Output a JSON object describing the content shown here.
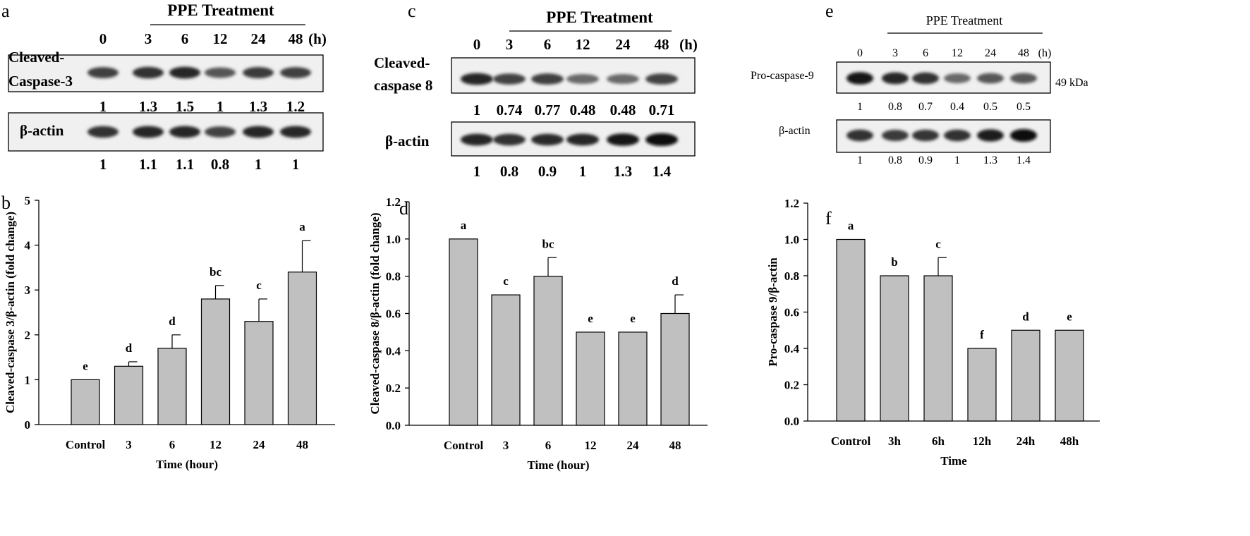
{
  "panel_letters": [
    "a",
    "b",
    "c",
    "d",
    "e",
    "f"
  ],
  "blots": [
    {
      "header": "PPE Treatment",
      "lanes": [
        "0",
        "3",
        "6",
        "12",
        "24",
        "48"
      ],
      "unit": "(h)",
      "rows": [
        {
          "label": [
            "Cleaved-",
            "Caspase-3"
          ],
          "values": [
            "1",
            "1.3",
            "1.5",
            "1",
            "1.3",
            "1.2"
          ],
          "band_intensity": [
            0.72,
            0.8,
            0.85,
            0.6,
            0.75,
            0.72
          ]
        },
        {
          "label": [
            "β-actin"
          ],
          "values": [
            "1",
            "1.1",
            "1.1",
            "0.8",
            "1",
            "1"
          ],
          "band_intensity": [
            0.8,
            0.85,
            0.85,
            0.7,
            0.85,
            0.85
          ]
        }
      ]
    },
    {
      "header": "PPE Treatment",
      "lanes": [
        "0",
        "3",
        "6",
        "12",
        "24",
        "48"
      ],
      "unit": "(h)",
      "rows": [
        {
          "label": [
            "Cleaved-",
            "caspase 8"
          ],
          "values": [
            "1",
            "0.74",
            "0.77",
            "0.48",
            "0.48",
            "0.71"
          ],
          "band_intensity": [
            0.85,
            0.7,
            0.72,
            0.5,
            0.5,
            0.7
          ]
        },
        {
          "label": [
            "β-actin"
          ],
          "values": [
            "1",
            "0.8",
            "0.9",
            "1",
            "1.3",
            "1.4"
          ],
          "band_intensity": [
            0.85,
            0.8,
            0.82,
            0.85,
            0.95,
            1.0
          ]
        }
      ]
    },
    {
      "header": "PPE Treatment",
      "lanes": [
        "0",
        "3",
        "6",
        "12",
        "24",
        "48"
      ],
      "unit": "(h)",
      "kda_label": "49 kDa",
      "rows": [
        {
          "label": [
            "Pro-caspase-9"
          ],
          "values": [
            "1",
            "0.8",
            "0.7",
            "0.4",
            "0.5",
            "0.5"
          ],
          "band_intensity": [
            0.95,
            0.85,
            0.8,
            0.5,
            0.6,
            0.6
          ]
        },
        {
          "label": [
            "β-actin"
          ],
          "values": [
            "1",
            "0.8",
            "0.9",
            "1",
            "1.3",
            "1.4"
          ],
          "band_intensity": [
            0.8,
            0.75,
            0.78,
            0.8,
            0.9,
            1.0
          ]
        }
      ]
    }
  ],
  "chart_data": [
    {
      "type": "bar",
      "categories": [
        "Control",
        "3",
        "6",
        "12",
        "24",
        "48"
      ],
      "values": [
        1.0,
        1.3,
        1.7,
        2.8,
        2.3,
        3.4
      ],
      "errors": [
        0,
        0.1,
        0.3,
        0.3,
        0.5,
        0.7
      ],
      "letters": [
        "e",
        "d",
        "d",
        "bc",
        "c",
        "a"
      ],
      "xlabel": "Time (hour)",
      "ylabel": "Cleaved-caspase 3/β-actin (fold change)",
      "ylim": [
        0,
        5
      ],
      "yticks": [
        "0",
        "1",
        "2",
        "3",
        "4",
        "5"
      ],
      "bar_color": "#c0c0c0"
    },
    {
      "type": "bar",
      "categories": [
        "Control",
        "3",
        "6",
        "12",
        "24",
        "48"
      ],
      "values": [
        1.0,
        0.7,
        0.8,
        0.5,
        0.5,
        0.6
      ],
      "errors": [
        0,
        0,
        0.1,
        0,
        0,
        0.1
      ],
      "letters": [
        "a",
        "c",
        "bc",
        "e",
        "e",
        "d"
      ],
      "xlabel": "Time (hour)",
      "ylabel": "Cleaved-caspase 8/β-actin (fold change)",
      "ylim": [
        0,
        1.2
      ],
      "yticks": [
        "0.0",
        "0.2",
        "0.4",
        "0.6",
        "0.8",
        "1.0",
        "1.2"
      ],
      "bar_color": "#c0c0c0"
    },
    {
      "type": "bar",
      "categories": [
        "Control",
        "3h",
        "6h",
        "12h",
        "24h",
        "48h"
      ],
      "values": [
        1.0,
        0.8,
        0.8,
        0.4,
        0.5,
        0.5
      ],
      "errors": [
        0,
        0,
        0.1,
        0,
        0,
        0
      ],
      "letters": [
        "a",
        "b",
        "c",
        "f",
        "d",
        "e"
      ],
      "xlabel": "Time",
      "ylabel": "Pro-caspase 9/β-actin",
      "ylim": [
        0,
        1.2
      ],
      "yticks": [
        "0.0",
        "0.2",
        "0.4",
        "0.6",
        "0.8",
        "1.0",
        "1.2"
      ],
      "bar_color": "#c0c0c0"
    }
  ]
}
